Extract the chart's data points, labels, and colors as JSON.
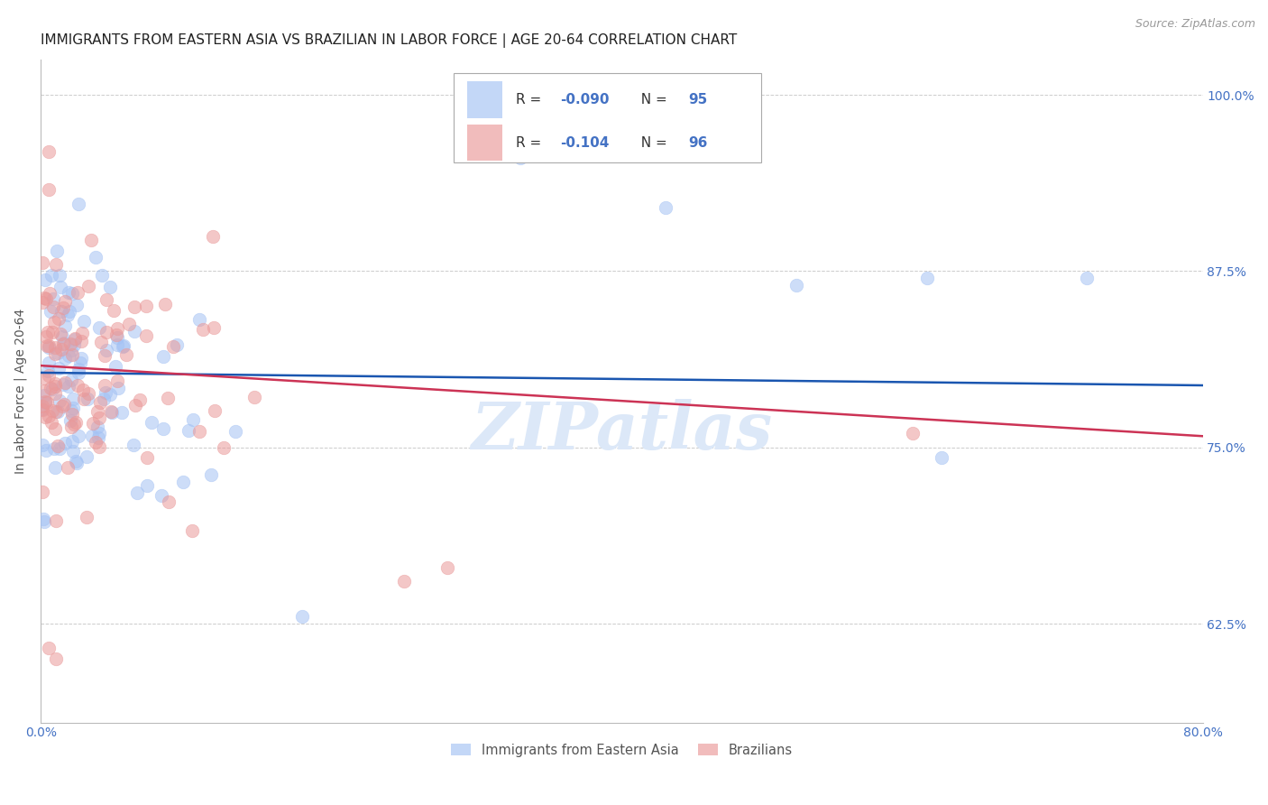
{
  "title": "IMMIGRANTS FROM EASTERN ASIA VS BRAZILIAN IN LABOR FORCE | AGE 20-64 CORRELATION CHART",
  "source": "Source: ZipAtlas.com",
  "ylabel": "In Labor Force | Age 20-64",
  "blue_color": "#a4c2f4",
  "pink_color": "#ea9999",
  "blue_line_color": "#1a56b0",
  "pink_line_color": "#cc3355",
  "legend_blue_color": "#a4c2f4",
  "legend_pink_color": "#ea9999",
  "legend_text_color": "#4472c4",
  "watermark": "ZIPatlas",
  "xmin": 0.0,
  "xmax": 0.8,
  "ymin": 0.555,
  "ymax": 1.025,
  "yticks": [
    0.625,
    0.75,
    0.875,
    1.0
  ],
  "ytick_labels": [
    "62.5%",
    "75.0%",
    "87.5%",
    "100.0%"
  ],
  "xtick_labels": [
    "0.0%",
    "",
    "",
    "",
    "80.0%"
  ],
  "blue_R": -0.09,
  "blue_N": 95,
  "pink_R": -0.104,
  "pink_N": 96,
  "blue_line_start_y": 0.803,
  "blue_line_end_y": 0.794,
  "pink_line_start_y": 0.808,
  "pink_line_end_y": 0.758,
  "background_color": "#ffffff",
  "grid_color": "#cccccc",
  "title_fontsize": 11,
  "axis_label_fontsize": 10,
  "tick_fontsize": 10,
  "tick_color": "#4472c4",
  "watermark_color": "#dce8f8",
  "watermark_fontsize": 52
}
